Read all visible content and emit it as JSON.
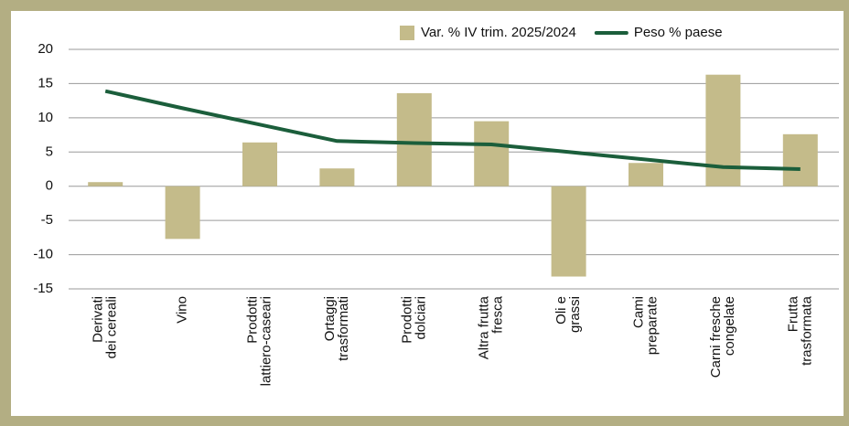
{
  "chart_data": {
    "type": "bar_line",
    "categories": [
      "Derivati\ndei cereali",
      "Vino",
      "Prodotti\nlattiero-caseari",
      "Ortaggi\ntrasformati",
      "Prodotti\ndolciari",
      "Altra frutta\nfresca",
      "Oli e\ngrassi",
      "Cami\npreparate",
      "Carni fresche\ncongelate",
      "Frutta\ntrasformata"
    ],
    "series": [
      {
        "name": "Var. % IV trim. 2025/2024",
        "type": "bar",
        "color": "#c4bb8a",
        "values": [
          0.6,
          -7.7,
          6.4,
          2.6,
          13.6,
          9.5,
          -13.2,
          3.4,
          16.3,
          7.6
        ]
      },
      {
        "name": "Peso % paese",
        "type": "line",
        "color": "#1b5e3b",
        "values": [
          13.9,
          11.4,
          9.0,
          6.6,
          6.3,
          6.1,
          5.0,
          3.9,
          2.8,
          2.5
        ]
      }
    ],
    "ylim": [
      -15,
      20
    ],
    "yticks": [
      -15,
      -10,
      -5,
      0,
      5,
      10,
      15,
      20
    ],
    "grid": true,
    "legend": "top-right"
  }
}
